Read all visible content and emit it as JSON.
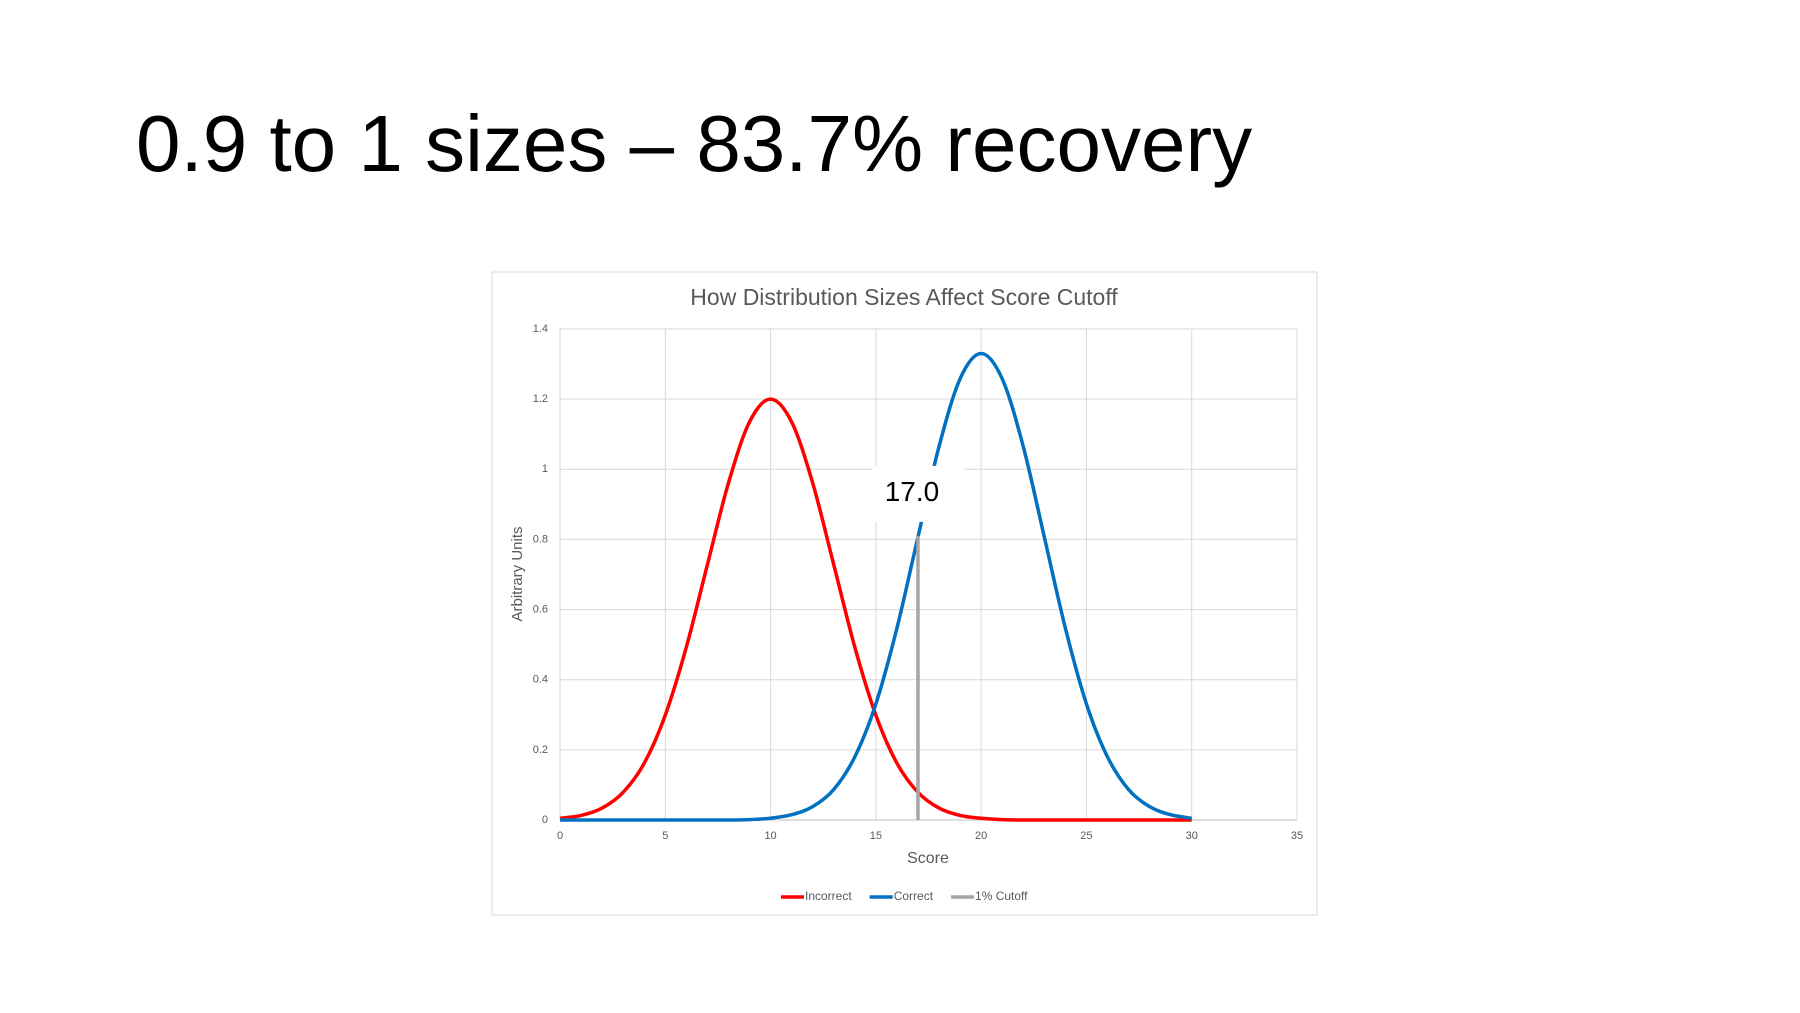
{
  "slide_title": "0.9 to 1 sizes – 83.7% recovery",
  "chart_data": {
    "type": "line",
    "title": "How Distribution Sizes Affect Score Cutoff",
    "x_label": "Score",
    "y_label": "Arbitrary Units",
    "xlim": [
      0,
      35
    ],
    "xticks": [
      0,
      5,
      10,
      15,
      20,
      25,
      30,
      35
    ],
    "ylim": [
      0,
      1.4
    ],
    "yticks": [
      0,
      0.2,
      0.4,
      0.6,
      0.8,
      1,
      1.2,
      1.4
    ],
    "grid": true,
    "legend": "bottom",
    "series": [
      {
        "name": "Incorrect",
        "color": "#ff0000",
        "x": [
          0,
          1,
          2,
          3,
          4,
          5,
          6,
          7,
          8,
          9,
          10,
          11,
          12,
          13,
          14,
          15,
          16,
          17,
          18,
          19,
          20,
          21,
          22,
          23,
          24,
          25,
          26,
          27,
          28,
          29,
          30
        ],
        "values": [
          0.005,
          0.013,
          0.034,
          0.079,
          0.162,
          0.299,
          0.493,
          0.728,
          0.961,
          1.135,
          1.2,
          1.135,
          0.961,
          0.728,
          0.493,
          0.299,
          0.162,
          0.079,
          0.034,
          0.013,
          0.005,
          0.001,
          0,
          0,
          0,
          0,
          0,
          0,
          0,
          0,
          0
        ]
      },
      {
        "name": "Correct",
        "color": "#0070c0",
        "x": [
          0,
          1,
          2,
          3,
          4,
          5,
          6,
          7,
          8,
          9,
          10,
          11,
          12,
          13,
          14,
          15,
          16,
          17,
          18,
          19,
          20,
          21,
          22,
          23,
          24,
          25,
          26,
          27,
          28,
          29,
          30
        ],
        "values": [
          0,
          0,
          0,
          0,
          0,
          0,
          0,
          0,
          0,
          0.001,
          0.005,
          0.015,
          0.038,
          0.087,
          0.18,
          0.331,
          0.547,
          0.807,
          1.065,
          1.258,
          1.33,
          1.258,
          1.065,
          0.807,
          0.547,
          0.331,
          0.18,
          0.087,
          0.038,
          0.015,
          0.005
        ]
      },
      {
        "name": "1% Cutoff",
        "color": "#a5a5a5",
        "x": [
          17,
          17
        ],
        "values": [
          0,
          0.81
        ]
      }
    ],
    "annotations": [
      {
        "text": "17.0",
        "x": 17,
        "y": 0.93
      }
    ]
  }
}
